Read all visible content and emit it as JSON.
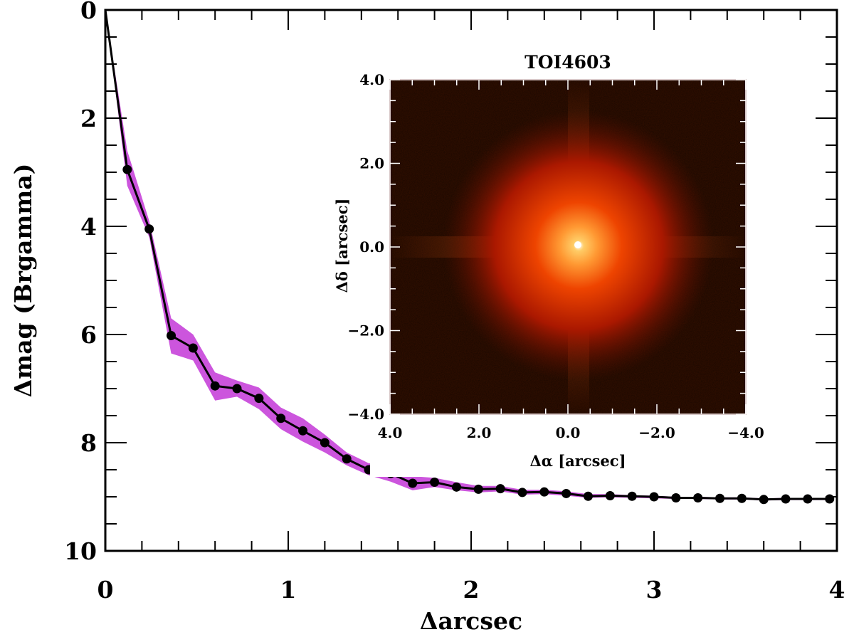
{
  "chart_data": [
    {
      "type": "line",
      "title": "",
      "xlabel": "Δarcsec",
      "ylabel": "Δmag (Brgamma)",
      "xlim": [
        0,
        4
      ],
      "ylim": [
        10,
        0
      ],
      "y_inverted": true,
      "x_ticks": [
        "0",
        "1",
        "2",
        "3",
        "4"
      ],
      "y_ticks": [
        "0",
        "2",
        "4",
        "6",
        "8",
        "10"
      ],
      "grid": false,
      "legend": "none",
      "band_color": "#cc55dd",
      "line_color": "#000000",
      "series": [
        {
          "x": [
            0.0,
            0.12,
            0.24,
            0.36,
            0.48,
            0.6,
            0.72,
            0.84,
            0.96,
            1.08,
            1.2,
            1.32,
            1.44,
            1.56,
            1.68,
            1.8,
            1.92,
            2.04,
            2.16,
            2.28,
            2.4,
            2.52,
            2.64,
            2.76,
            2.88,
            3.0,
            3.12,
            3.24,
            3.36,
            3.48,
            3.6,
            3.72,
            3.84,
            3.96
          ],
          "y": [
            0.0,
            2.95,
            4.05,
            6.02,
            6.25,
            6.95,
            7.0,
            7.18,
            7.55,
            7.78,
            8.0,
            8.3,
            8.5,
            8.57,
            8.75,
            8.73,
            8.82,
            8.86,
            8.85,
            8.92,
            8.91,
            8.94,
            8.99,
            8.98,
            8.99,
            9.0,
            9.02,
            9.02,
            9.03,
            9.03,
            9.05,
            9.04,
            9.04,
            9.04
          ],
          "band_lower": [
            0.0,
            2.6,
            3.9,
            5.7,
            6.0,
            6.7,
            6.85,
            6.98,
            7.35,
            7.55,
            7.85,
            8.18,
            8.38,
            8.42,
            8.62,
            8.65,
            8.73,
            8.8,
            8.8,
            8.87,
            8.87,
            8.9,
            8.95,
            8.95,
            8.97,
            8.98,
            9.0,
            9.0,
            9.01,
            9.01,
            9.03,
            9.02,
            9.02,
            9.02
          ],
          "band_upper": [
            0.0,
            3.25,
            4.2,
            6.35,
            6.48,
            7.22,
            7.15,
            7.38,
            7.75,
            7.98,
            8.18,
            8.42,
            8.6,
            8.72,
            8.88,
            8.82,
            8.88,
            8.92,
            8.9,
            8.96,
            8.95,
            8.98,
            9.02,
            9.01,
            9.02,
            9.03,
            9.04,
            9.04,
            9.05,
            9.05,
            9.07,
            9.06,
            9.06,
            9.06
          ]
        }
      ]
    },
    {
      "type": "heatmap",
      "title": "TOI4603",
      "xlabel": "Δα [arcsec]",
      "ylabel": "Δδ [arcsec]",
      "xlim": [
        4.0,
        -4.0
      ],
      "ylim": [
        -4.0,
        4.0
      ],
      "x_ticks": [
        "4.0",
        "2.0",
        "0.0",
        "−2.0",
        "−4.0"
      ],
      "y_ticks": [
        "4.0",
        "2.0",
        "0.0",
        "−2.0",
        "−4.0"
      ],
      "colormap": [
        "#ffffff",
        "#ffcc66",
        "#ff9933",
        "#ee4400",
        "#aa1800",
        "#5a0f00",
        "#351000"
      ]
    }
  ]
}
